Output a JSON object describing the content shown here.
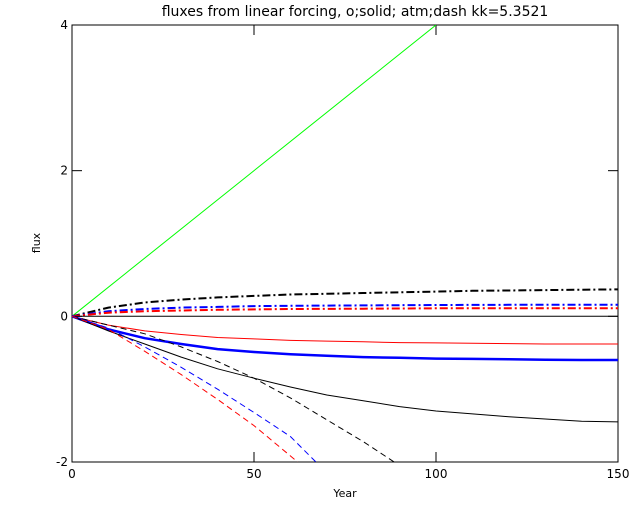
{
  "chart_data": {
    "type": "line",
    "title": "fluxes from linear forcing, o;solid; atm;dash kk=5.3521",
    "xlabel": "Year",
    "ylabel": "flux",
    "xlim": [
      0,
      150
    ],
    "ylim": [
      -2,
      4
    ],
    "xticks": [
      0,
      50,
      100,
      150
    ],
    "yticks": [
      -2,
      0,
      2,
      4
    ],
    "grid": false,
    "background": "#ffffff",
    "series": [
      {
        "color": "#00ff00",
        "style": "solid",
        "width": 1,
        "x": [
          0,
          100
        ],
        "y": [
          0,
          4.0
        ]
      },
      {
        "color": "#000000",
        "style": "dashdot",
        "width": 2,
        "x": [
          0,
          10,
          20,
          30,
          40,
          50,
          60,
          70,
          80,
          90,
          100,
          110,
          120,
          130,
          140,
          150
        ],
        "y": [
          0,
          0.12,
          0.19,
          0.23,
          0.26,
          0.28,
          0.3,
          0.31,
          0.32,
          0.33,
          0.34,
          0.35,
          0.355,
          0.36,
          0.365,
          0.37
        ]
      },
      {
        "color": "#0000ff",
        "style": "dashdot",
        "width": 2,
        "x": [
          0,
          10,
          20,
          30,
          40,
          50,
          60,
          80,
          100,
          120,
          150
        ],
        "y": [
          0,
          0.07,
          0.1,
          0.12,
          0.13,
          0.14,
          0.145,
          0.15,
          0.155,
          0.158,
          0.16
        ]
      },
      {
        "color": "#ff0000",
        "style": "dashdot",
        "width": 2,
        "x": [
          0,
          10,
          20,
          30,
          40,
          50,
          60,
          80,
          100,
          120,
          150
        ],
        "y": [
          0,
          0.05,
          0.07,
          0.08,
          0.09,
          0.095,
          0.1,
          0.105,
          0.11,
          0.11,
          0.11
        ]
      },
      {
        "color": "#000000",
        "style": "solid",
        "width": 1,
        "x": [
          0,
          150
        ],
        "y": [
          0,
          0
        ]
      },
      {
        "color": "#ff0000",
        "style": "solid",
        "width": 1,
        "x": [
          0,
          10,
          20,
          30,
          40,
          50,
          60,
          70,
          80,
          90,
          100,
          110,
          120,
          130,
          140,
          150
        ],
        "y": [
          0,
          -0.12,
          -0.2,
          -0.25,
          -0.29,
          -0.31,
          -0.33,
          -0.34,
          -0.35,
          -0.36,
          -0.365,
          -0.37,
          -0.375,
          -0.38,
          -0.38,
          -0.38
        ]
      },
      {
        "color": "#0000ff",
        "style": "solid",
        "width": 2.5,
        "x": [
          0,
          10,
          20,
          30,
          40,
          50,
          60,
          70,
          80,
          90,
          100,
          110,
          120,
          130,
          140,
          150
        ],
        "y": [
          0,
          -0.18,
          -0.3,
          -0.38,
          -0.45,
          -0.49,
          -0.52,
          -0.54,
          -0.56,
          -0.57,
          -0.58,
          -0.585,
          -0.59,
          -0.595,
          -0.6,
          -0.6
        ]
      },
      {
        "color": "#000000",
        "style": "solid",
        "width": 1,
        "x": [
          0,
          10,
          20,
          30,
          40,
          50,
          60,
          70,
          80,
          90,
          100,
          110,
          120,
          130,
          140,
          150
        ],
        "y": [
          0,
          -0.2,
          -0.38,
          -0.56,
          -0.72,
          -0.85,
          -0.97,
          -1.08,
          -1.16,
          -1.24,
          -1.3,
          -1.34,
          -1.38,
          -1.41,
          -1.44,
          -1.45
        ]
      },
      {
        "color": "#000000",
        "style": "dashed",
        "width": 1,
        "x": [
          0,
          10,
          20,
          30,
          40,
          50,
          60,
          70,
          80,
          90
        ],
        "y": [
          0,
          -0.12,
          -0.24,
          -0.42,
          -0.62,
          -0.85,
          -1.12,
          -1.42,
          -1.72,
          -2.05
        ]
      },
      {
        "color": "#0000ff",
        "style": "dashed",
        "width": 1,
        "x": [
          0,
          10,
          20,
          30,
          40,
          50,
          60,
          67
        ],
        "y": [
          0,
          -0.16,
          -0.42,
          -0.7,
          -1.0,
          -1.32,
          -1.65,
          -2.0
        ]
      },
      {
        "color": "#ff0000",
        "style": "dashed",
        "width": 1,
        "x": [
          0,
          10,
          20,
          30,
          40,
          50,
          62
        ],
        "y": [
          0,
          -0.18,
          -0.48,
          -0.8,
          -1.14,
          -1.5,
          -2.0
        ]
      }
    ]
  }
}
